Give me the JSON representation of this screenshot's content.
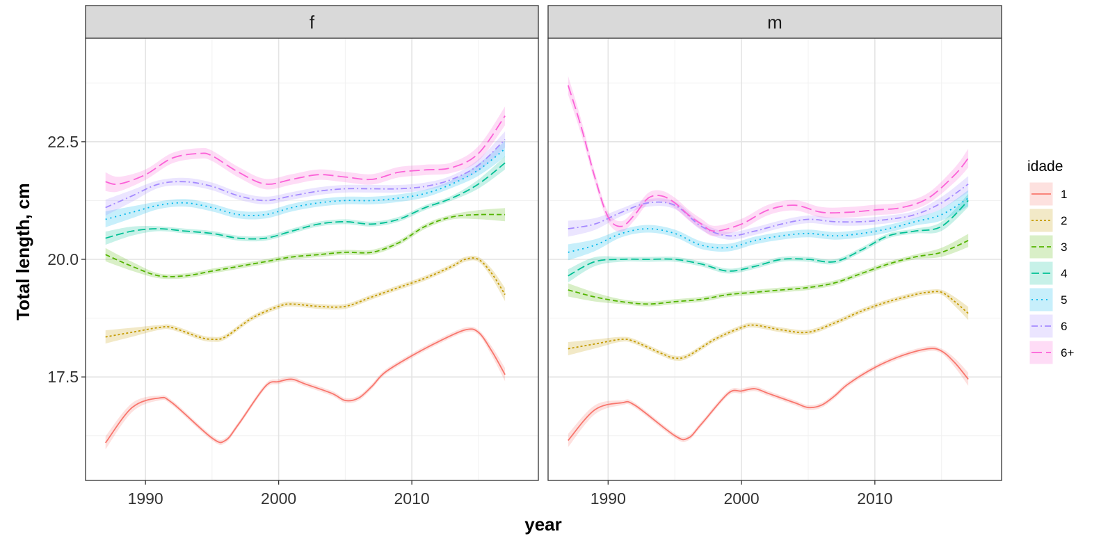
{
  "chart_data": {
    "type": "line",
    "facet_variable": "sex",
    "panels": [
      {
        "label": "f",
        "series": [
          {
            "name": "1",
            "x": [
              1987,
              1989,
              1991,
              1992,
              1995,
              1996,
              1997,
              1999,
              2000,
              2001,
              2002,
              2004,
              2005,
              2006,
              2007,
              2008,
              2010,
              2012,
              2014,
              2015,
              2016,
              2017
            ],
            "y": [
              16.1,
              16.85,
              17.05,
              16.95,
              16.2,
              16.15,
              16.5,
              17.3,
              17.4,
              17.45,
              17.35,
              17.15,
              17.0,
              17.05,
              17.3,
              17.6,
              17.95,
              18.25,
              18.5,
              18.45,
              18.05,
              17.55
            ]
          },
          {
            "name": "2",
            "x": [
              1987,
              1989,
              1991,
              1992,
              1994,
              1995,
              1996,
              1998,
              2000,
              2001,
              2003,
              2005,
              2007,
              2009,
              2011,
              2013,
              2014,
              2015,
              2016,
              2017
            ],
            "y": [
              18.35,
              18.45,
              18.55,
              18.55,
              18.35,
              18.3,
              18.35,
              18.75,
              19.0,
              19.05,
              19.0,
              19.0,
              19.2,
              19.4,
              19.6,
              19.85,
              20.0,
              20.0,
              19.7,
              19.25
            ]
          },
          {
            "name": "3",
            "x": [
              1987,
              1989,
              1991,
              1993,
              1995,
              1997,
              1999,
              2001,
              2003,
              2005,
              2007,
              2009,
              2011,
              2013,
              2015,
              2017
            ],
            "y": [
              20.1,
              19.85,
              19.65,
              19.65,
              19.75,
              19.85,
              19.95,
              20.05,
              20.1,
              20.15,
              20.15,
              20.35,
              20.7,
              20.9,
              20.95,
              20.95
            ]
          },
          {
            "name": "4",
            "x": [
              1987,
              1989,
              1991,
              1993,
              1995,
              1997,
              1999,
              2001,
              2003,
              2005,
              2007,
              2009,
              2011,
              2013,
              2015,
              2017
            ],
            "y": [
              20.45,
              20.6,
              20.65,
              20.6,
              20.55,
              20.45,
              20.45,
              20.6,
              20.75,
              20.8,
              20.75,
              20.85,
              21.1,
              21.3,
              21.6,
              22.05
            ]
          },
          {
            "name": "5",
            "x": [
              1987,
              1989,
              1991,
              1993,
              1995,
              1997,
              1999,
              2001,
              2003,
              2005,
              2007,
              2009,
              2011,
              2013,
              2015,
              2017
            ],
            "y": [
              20.85,
              21.0,
              21.15,
              21.2,
              21.1,
              20.95,
              20.95,
              21.1,
              21.2,
              21.25,
              21.25,
              21.3,
              21.4,
              21.6,
              21.9,
              22.35
            ]
          },
          {
            "name": "6",
            "x": [
              1987,
              1989,
              1991,
              1993,
              1995,
              1997,
              1999,
              2001,
              2003,
              2005,
              2007,
              2009,
              2011,
              2013,
              2015,
              2017
            ],
            "y": [
              21.1,
              21.35,
              21.6,
              21.65,
              21.55,
              21.35,
              21.25,
              21.35,
              21.45,
              21.5,
              21.5,
              21.5,
              21.55,
              21.7,
              22.0,
              22.55
            ]
          },
          {
            "name": "6+",
            "x": [
              1987,
              1988,
              1990,
              1992,
              1994,
              1995,
              1997,
              1999,
              2001,
              2003,
              2005,
              2007,
              2009,
              2011,
              2013,
              2015,
              2017
            ],
            "y": [
              21.65,
              21.6,
              21.8,
              22.15,
              22.25,
              22.2,
              21.85,
              21.6,
              21.7,
              21.8,
              21.75,
              21.7,
              21.85,
              21.9,
              21.95,
              22.25,
              23.05
            ]
          }
        ]
      },
      {
        "label": "m",
        "series": [
          {
            "name": "1",
            "x": [
              1987,
              1989,
              1991,
              1992,
              1995,
              1996,
              1997,
              1999,
              2000,
              2001,
              2002,
              2004,
              2005,
              2006,
              2007,
              2008,
              2010,
              2012,
              2014,
              2015,
              2016,
              2017
            ],
            "y": [
              16.15,
              16.8,
              16.95,
              16.9,
              16.25,
              16.2,
              16.5,
              17.15,
              17.2,
              17.25,
              17.15,
              16.95,
              16.85,
              16.9,
              17.1,
              17.35,
              17.7,
              17.95,
              18.1,
              18.05,
              17.8,
              17.45
            ]
          },
          {
            "name": "2",
            "x": [
              1987,
              1989,
              1991,
              1992,
              1994,
              1995,
              1996,
              1998,
              2000,
              2001,
              2003,
              2005,
              2007,
              2009,
              2011,
              2013,
              2014,
              2015,
              2016,
              2017
            ],
            "y": [
              18.1,
              18.2,
              18.3,
              18.25,
              18.0,
              17.9,
              17.95,
              18.3,
              18.55,
              18.6,
              18.5,
              18.45,
              18.65,
              18.9,
              19.1,
              19.25,
              19.3,
              19.3,
              19.1,
              18.85
            ]
          },
          {
            "name": "3",
            "x": [
              1987,
              1989,
              1991,
              1993,
              1995,
              1997,
              1999,
              2001,
              2003,
              2005,
              2007,
              2009,
              2011,
              2013,
              2015,
              2017
            ],
            "y": [
              19.35,
              19.2,
              19.1,
              19.05,
              19.1,
              19.15,
              19.25,
              19.3,
              19.35,
              19.4,
              19.5,
              19.7,
              19.9,
              20.05,
              20.15,
              20.4
            ]
          },
          {
            "name": "4",
            "x": [
              1987,
              1989,
              1991,
              1993,
              1995,
              1997,
              1999,
              2001,
              2003,
              2005,
              2007,
              2009,
              2011,
              2013,
              2015,
              2017
            ],
            "y": [
              19.65,
              19.95,
              20.0,
              20.0,
              20.0,
              19.9,
              19.75,
              19.85,
              20.0,
              20.0,
              19.95,
              20.2,
              20.5,
              20.6,
              20.7,
              21.25
            ]
          },
          {
            "name": "5",
            "x": [
              1987,
              1989,
              1991,
              1993,
              1995,
              1997,
              1999,
              2001,
              2003,
              2005,
              2007,
              2009,
              2011,
              2013,
              2015,
              2017
            ],
            "y": [
              20.15,
              20.3,
              20.55,
              20.65,
              20.55,
              20.3,
              20.25,
              20.4,
              20.5,
              20.55,
              20.5,
              20.55,
              20.65,
              20.8,
              20.95,
              21.3
            ]
          },
          {
            "name": "6",
            "x": [
              1987,
              1989,
              1991,
              1993,
              1995,
              1997,
              1999,
              2001,
              2003,
              2005,
              2007,
              2009,
              2011,
              2013,
              2015,
              2017
            ],
            "y": [
              20.65,
              20.75,
              21.0,
              21.2,
              21.15,
              20.7,
              20.5,
              20.6,
              20.75,
              20.85,
              20.8,
              20.8,
              20.85,
              20.95,
              21.2,
              21.6
            ]
          },
          {
            "name": "6+",
            "x": [
              1987,
              1988,
              1989,
              1990,
              1991,
              1992,
              1993,
              1994,
              1995,
              1996,
              1997,
              1998,
              2000,
              2002,
              2004,
              2006,
              2008,
              2010,
              2012,
              2014,
              2016,
              2017
            ],
            "y": [
              23.7,
              22.8,
              21.75,
              20.9,
              20.7,
              20.95,
              21.3,
              21.35,
              21.2,
              20.95,
              20.75,
              20.6,
              20.75,
              21.05,
              21.15,
              21.0,
              21.0,
              21.05,
              21.1,
              21.3,
              21.8,
              22.15
            ]
          }
        ]
      }
    ],
    "xlabel": "year",
    "ylabel": "Total length, cm",
    "x_ticks": [
      1990,
      2000,
      2010
    ],
    "y_ticks": [
      17.5,
      20.0,
      22.5
    ],
    "xlim": [
      1985.5,
      2019.5
    ],
    "ylim": [
      15.3,
      24.7
    ],
    "legend": {
      "title": "idade",
      "position": "right",
      "entries": [
        "1",
        "2",
        "3",
        "4",
        "5",
        "6",
        "6+"
      ]
    },
    "grid": true,
    "confidence_bands": true,
    "colors": {
      "1": "#F8766D",
      "2": "#C49A00",
      "3": "#53B400",
      "4": "#00C094",
      "5": "#00B6EB",
      "6": "#A58AFF",
      "6+": "#FB61D7"
    },
    "line_styles": {
      "1": "solid",
      "2": "dotted",
      "3": "dashed",
      "4": "long-dashed",
      "5": "fine-dotted",
      "6": "dash-dot",
      "6+": "long-dash"
    }
  }
}
